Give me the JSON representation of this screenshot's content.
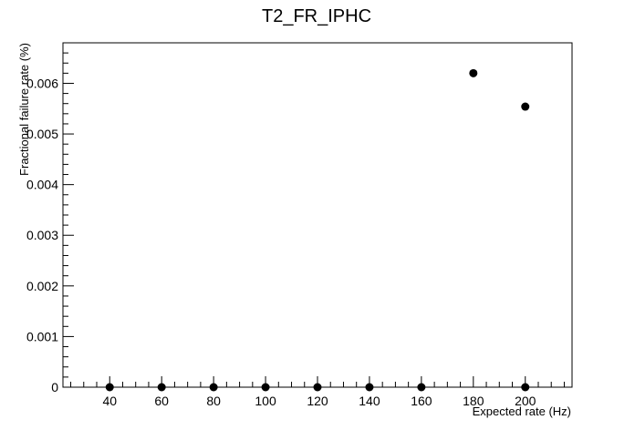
{
  "chart_data": {
    "type": "scatter",
    "title": "T2_FR_IPHC",
    "xlabel": "Expected rate (Hz)",
    "ylabel": "Fractional failure rate (%)",
    "xlim": [
      22,
      218
    ],
    "ylim": [
      0,
      0.0068
    ],
    "x_ticks": [
      "40",
      "60",
      "80",
      "100",
      "120",
      "140",
      "160",
      "180",
      "200"
    ],
    "y_ticks": [
      "0",
      "0.001",
      "0.002",
      "0.003",
      "0.004",
      "0.005",
      "0.006"
    ],
    "grid": false,
    "marker_color": "#000000",
    "points": [
      {
        "x": 40,
        "y": 0
      },
      {
        "x": 60,
        "y": 0
      },
      {
        "x": 80,
        "y": 0
      },
      {
        "x": 100,
        "y": 0
      },
      {
        "x": 120,
        "y": 0
      },
      {
        "x": 140,
        "y": 0
      },
      {
        "x": 160,
        "y": 0
      },
      {
        "x": 180,
        "y": 0.0062
      },
      {
        "x": 200,
        "y": 0
      },
      {
        "x": 200,
        "y": 0.00554
      }
    ]
  }
}
